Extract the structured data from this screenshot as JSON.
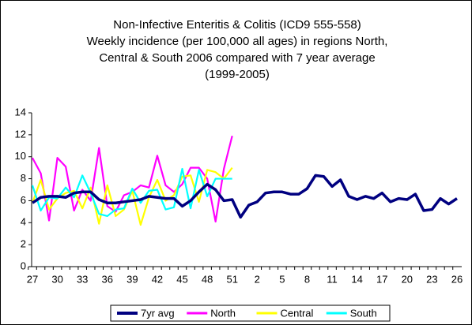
{
  "chart_data": {
    "type": "line",
    "title": [
      "Non-Infective Enteritis & Colitis (ICD9 555-558)",
      "Weekly incidence (per 100,000 all ages) in regions North,",
      "Central & South 2006 compared with 7 year average",
      "(1999-2005)"
    ],
    "categories": [
      "27",
      null,
      null,
      "30",
      null,
      null,
      "33",
      null,
      null,
      "36",
      null,
      null,
      "39",
      null,
      null,
      "42",
      null,
      null,
      "45",
      null,
      null,
      "48",
      null,
      null,
      "51",
      null,
      null,
      "2",
      null,
      null,
      "5",
      null,
      null,
      "8",
      null,
      null,
      "11",
      null,
      null,
      "14",
      null,
      null,
      "17",
      null,
      null,
      "20",
      null,
      null,
      "23",
      null,
      null,
      "26"
    ],
    "series": [
      {
        "name": "7yr avg",
        "color": "#000080",
        "values": [
          5.8,
          6.3,
          6.4,
          6.4,
          6.3,
          6.7,
          6.8,
          6.8,
          6.1,
          5.8,
          5.8,
          5.9,
          6.0,
          6.1,
          6.4,
          6.3,
          6.2,
          6.2,
          5.5,
          6.0,
          6.8,
          7.5,
          7.0,
          6.0,
          6.1,
          4.5,
          5.6,
          5.9,
          6.7,
          6.8,
          6.8,
          6.6,
          6.6,
          7.1,
          8.3,
          8.2,
          7.3,
          7.9,
          6.4,
          6.1,
          6.4,
          6.2,
          6.7,
          5.9,
          6.2,
          6.1,
          6.6,
          5.1,
          5.2,
          6.2,
          5.7,
          6.2
        ]
      },
      {
        "name": "North",
        "color": "#ff00ff",
        "values": [
          9.9,
          8.5,
          4.2,
          9.9,
          9.1,
          5.1,
          7.0,
          6.0,
          10.8,
          5.5,
          5.0,
          6.5,
          6.8,
          7.4,
          7.2,
          10.1,
          7.4,
          6.8,
          7.5,
          9.0,
          9.0,
          8.0,
          4.1,
          8.9,
          11.9,
          null,
          null,
          null,
          null,
          null,
          null,
          null,
          null,
          null,
          null,
          null,
          null,
          null,
          null,
          null,
          null,
          null,
          null,
          null,
          null,
          null,
          null,
          null,
          null,
          null,
          null,
          null
        ]
      },
      {
        "name": "Central",
        "color": "#ffff00",
        "values": [
          5.8,
          7.9,
          5.2,
          6.2,
          6.7,
          6.9,
          5.3,
          7.2,
          3.9,
          7.4,
          4.6,
          5.2,
          6.9,
          3.8,
          6.3,
          7.9,
          6.0,
          6.5,
          8.2,
          8.3,
          5.9,
          8.8,
          8.6,
          8.0,
          9.0,
          null,
          null,
          null,
          null,
          null,
          null,
          null,
          null,
          null,
          null,
          null,
          null,
          null,
          null,
          null,
          null,
          null,
          null,
          null,
          null,
          null,
          null,
          null,
          null,
          null,
          null,
          null
        ]
      },
      {
        "name": "South",
        "color": "#00ffff",
        "values": [
          7.4,
          5.1,
          6.3,
          6.2,
          7.2,
          6.3,
          8.3,
          6.7,
          4.8,
          4.6,
          5.2,
          5.3,
          7.1,
          5.8,
          6.9,
          7.0,
          5.2,
          5.4,
          8.9,
          5.3,
          8.8,
          6.4,
          8.0,
          8.0,
          8.0,
          null,
          null,
          null,
          null,
          null,
          null,
          null,
          null,
          null,
          null,
          null,
          null,
          null,
          null,
          null,
          null,
          null,
          null,
          null,
          null,
          null,
          null,
          null,
          null,
          null,
          null,
          null
        ]
      }
    ],
    "ylim": [
      0,
      14
    ],
    "yticks": [
      0,
      2,
      4,
      6,
      8,
      10,
      12,
      14
    ],
    "grid": false,
    "legend": "bottom"
  }
}
